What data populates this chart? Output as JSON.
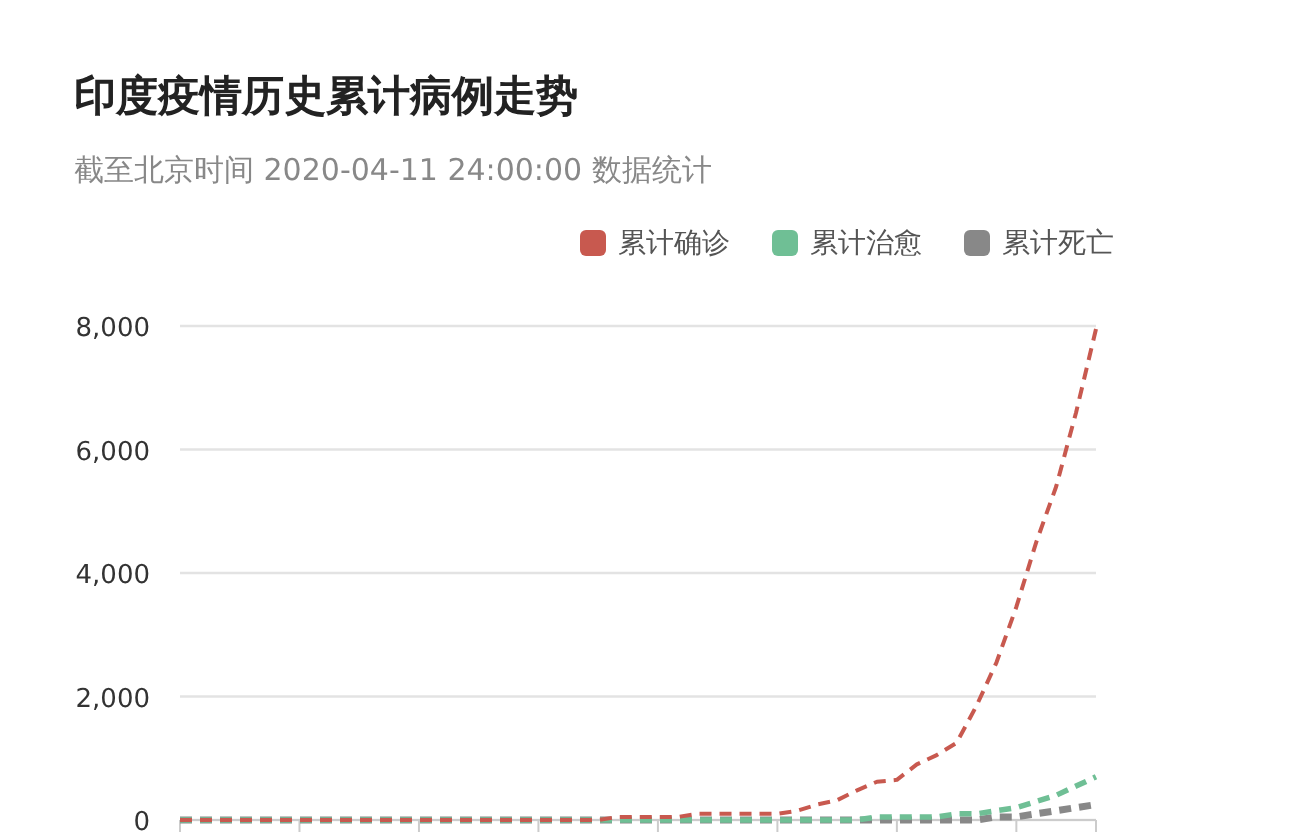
{
  "chart_data": {
    "type": "line",
    "title": "印度疫情历史累计病例走势",
    "subtitle": "截至北京时间 2020-04-11 24:00:00 数据统计",
    "categories": [
      null,
      null,
      null,
      null,
      null,
      null,
      null,
      null,
      null,
      null,
      null,
      null,
      null,
      null,
      null,
      null,
      null,
      null,
      null,
      null,
      null,
      null,
      null,
      null,
      null,
      null,
      null,
      null,
      null,
      null,
      null,
      null,
      null,
      null,
      null,
      null,
      null,
      null,
      null,
      null,
      null,
      null,
      null,
      null,
      null,
      null,
      null
    ],
    "series": [
      {
        "name": "累计确诊",
        "color": "#c8594f",
        "values": [
          0,
          0,
          0,
          0,
          0,
          0,
          0,
          0,
          0,
          0,
          0,
          0,
          0,
          0,
          0,
          0,
          0,
          0,
          0,
          0,
          0,
          0,
          50,
          50,
          50,
          50,
          100,
          100,
          100,
          100,
          100,
          150,
          250,
          320,
          480,
          620,
          650,
          900,
          1050,
          1250,
          1850,
          2550,
          3450,
          4500,
          5400,
          6600,
          7950
        ]
      },
      {
        "name": "累计治愈",
        "color": "#6fbf95",
        "values": [
          0,
          0,
          0,
          0,
          0,
          0,
          0,
          0,
          0,
          0,
          0,
          0,
          0,
          0,
          0,
          0,
          0,
          0,
          0,
          0,
          0,
          0,
          0,
          0,
          0,
          0,
          0,
          0,
          0,
          0,
          0,
          0,
          0,
          0,
          0,
          50,
          50,
          50,
          50,
          100,
          100,
          150,
          200,
          300,
          400,
          550,
          700
        ]
      },
      {
        "name": "累计死亡",
        "color": "#888888",
        "values": [
          0,
          0,
          0,
          0,
          0,
          0,
          0,
          0,
          0,
          0,
          0,
          0,
          0,
          0,
          0,
          0,
          0,
          0,
          0,
          0,
          0,
          0,
          0,
          0,
          0,
          0,
          0,
          0,
          0,
          0,
          0,
          0,
          0,
          0,
          0,
          0,
          0,
          0,
          0,
          0,
          0,
          50,
          50,
          100,
          150,
          200,
          250
        ]
      }
    ],
    "ylim": [
      0,
      8000
    ],
    "yticks": [
      0,
      {
        "value": 2000,
        "label": "2,000"
      },
      {
        "value": 4000,
        "label": "4,000"
      },
      {
        "value": 6000,
        "label": "6,000"
      },
      {
        "value": 8000,
        "label": "8,000"
      }
    ],
    "grid": "y",
    "legend": "top right",
    "line_style": "dashed",
    "marker": "none",
    "tick_labels": "y"
  }
}
